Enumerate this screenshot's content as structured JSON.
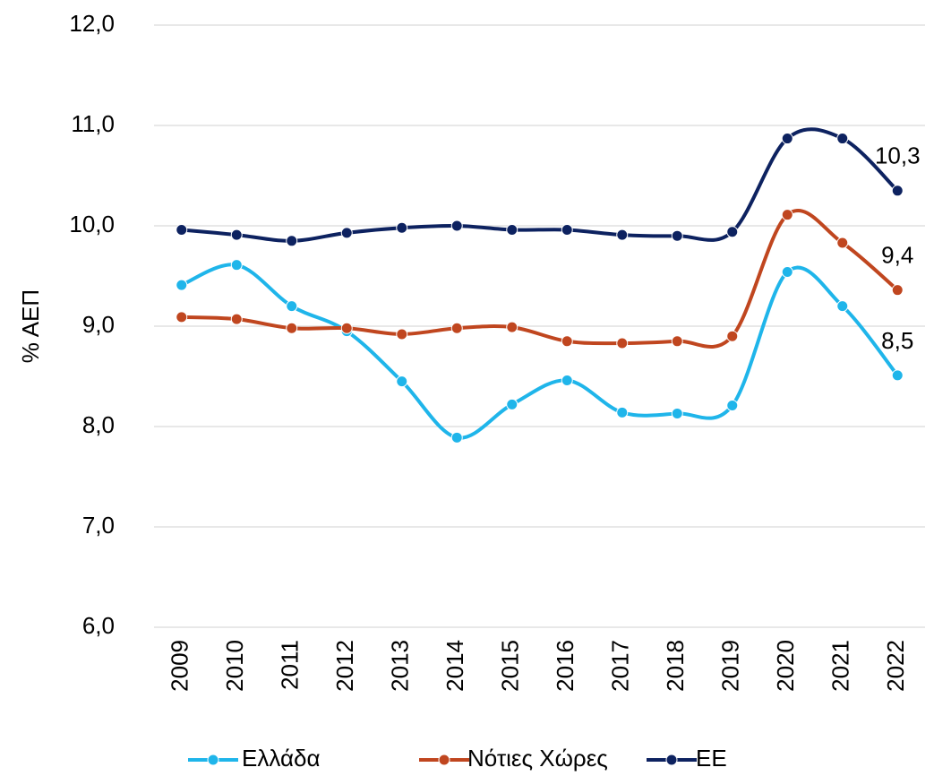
{
  "chart_data": {
    "type": "line",
    "y_label": "% ΑΕΠ",
    "categories": [
      "2009",
      "2010",
      "2011",
      "2012",
      "2013",
      "2014",
      "2015",
      "2016",
      "2017",
      "2018",
      "2019",
      "2020",
      "2021",
      "2022"
    ],
    "series": [
      {
        "name": "Ελλάδα",
        "color": "#1fb5ea",
        "values": [
          9.41,
          9.61,
          9.2,
          8.95,
          8.45,
          7.89,
          8.22,
          8.46,
          8.14,
          8.13,
          8.21,
          9.54,
          9.2,
          8.51
        ],
        "value_labels": [
          null,
          null,
          null,
          null,
          null,
          null,
          null,
          null,
          null,
          null,
          null,
          null,
          null,
          "8,5"
        ]
      },
      {
        "name": "Νότιες Χώρες",
        "color": "#c0461f",
        "values": [
          9.09,
          9.07,
          8.98,
          8.98,
          8.92,
          8.98,
          8.99,
          8.85,
          8.83,
          8.85,
          8.9,
          10.11,
          9.83,
          9.36
        ],
        "value_labels": [
          null,
          null,
          null,
          null,
          null,
          null,
          null,
          null,
          null,
          null,
          null,
          null,
          null,
          "9,4"
        ]
      },
      {
        "name": "ΕΕ",
        "color": "#0d2260",
        "values": [
          9.96,
          9.91,
          9.85,
          9.93,
          9.98,
          10.0,
          9.96,
          9.96,
          9.91,
          9.9,
          9.94,
          10.87,
          10.87,
          10.35
        ],
        "value_labels": [
          null,
          null,
          null,
          null,
          null,
          null,
          null,
          null,
          null,
          null,
          null,
          null,
          null,
          "10,3"
        ]
      }
    ],
    "ylim": [
      6,
      12
    ],
    "yticks": [
      {
        "value": 6,
        "label": "6,0"
      },
      {
        "value": 7,
        "label": "7,0"
      },
      {
        "value": 8,
        "label": "8,0"
      },
      {
        "value": 9,
        "label": "9,0"
      },
      {
        "value": 10,
        "label": "10,0"
      },
      {
        "value": 11,
        "label": "11,0"
      },
      {
        "value": 12,
        "label": "12,0"
      }
    ],
    "grid": true,
    "smooth": true,
    "legend": "bottom"
  }
}
